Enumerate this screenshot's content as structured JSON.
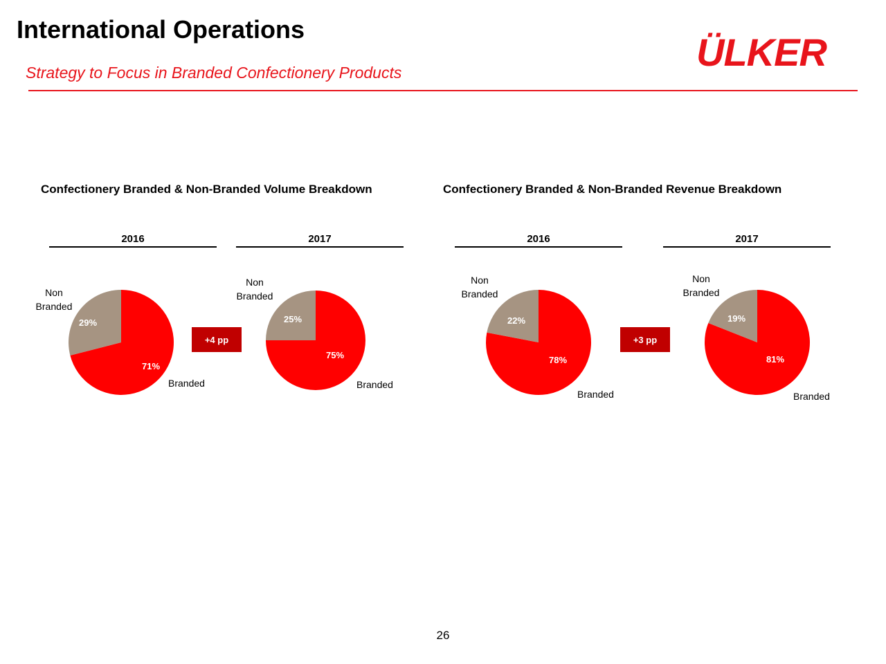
{
  "header": {
    "title": "International Operations",
    "subtitle": "Strategy to Focus in Branded Confectionery Products",
    "logo_text": "ÜLKER"
  },
  "colors": {
    "brand_red": "#e8141b",
    "branded_slice": "#ff0000",
    "non_branded_slice": "#a69482",
    "pp_box": "#c00000"
  },
  "chart_data": [
    {
      "type": "pie",
      "title": "Confectionery Branded & Non-Branded Volume Breakdown",
      "subtitle": "2016",
      "slices": [
        {
          "label": "Branded",
          "value": 71
        },
        {
          "label": "Non Branded",
          "value": 29
        }
      ],
      "annotation": "+4 pp"
    },
    {
      "type": "pie",
      "title": "Confectionery Branded & Non-Branded Volume Breakdown",
      "subtitle": "2017",
      "slices": [
        {
          "label": "Branded",
          "value": 75
        },
        {
          "label": "Non Branded",
          "value": 25
        }
      ]
    },
    {
      "type": "pie",
      "title": "Confectionery Branded & Non-Branded Revenue Breakdown",
      "subtitle": "2016",
      "slices": [
        {
          "label": "Branded",
          "value": 78
        },
        {
          "label": "Non Branded",
          "value": 22
        }
      ],
      "annotation": "+3 pp"
    },
    {
      "type": "pie",
      "title": "Confectionery Branded & Non-Branded Revenue Breakdown",
      "subtitle": "2017",
      "slices": [
        {
          "label": "Branded",
          "value": 81
        },
        {
          "label": "Non Branded",
          "value": 19
        }
      ]
    }
  ],
  "sections": {
    "volume_title": "Confectionery Branded & Non-Branded Volume Breakdown",
    "revenue_title": "Confectionery Branded & Non-Branded Revenue Breakdown"
  },
  "years": {
    "pie1": "2016",
    "pie2": "2017",
    "pie3": "2016",
    "pie4": "2017"
  },
  "labels": {
    "non_line1": "Non",
    "non_line2": "Branded",
    "branded": "Branded"
  },
  "pie_values": {
    "pie1": {
      "branded": "71%",
      "non": "29%"
    },
    "pie2": {
      "branded": "75%",
      "non": "25%"
    },
    "pie3": {
      "branded": "78%",
      "non": "22%"
    },
    "pie4": {
      "branded": "81%",
      "non": "19%"
    }
  },
  "changes": {
    "volume": "+4 pp",
    "revenue": "+3 pp"
  },
  "footer": {
    "page_number": "26"
  }
}
